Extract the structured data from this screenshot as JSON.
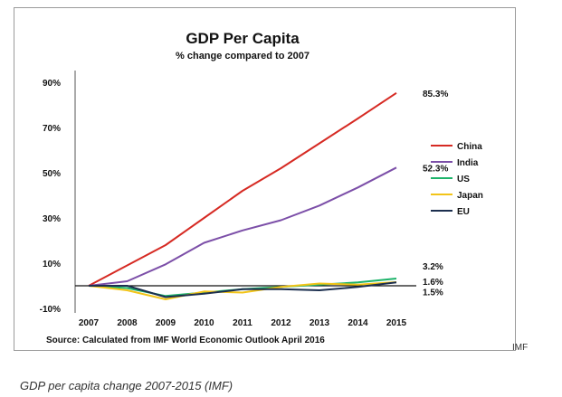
{
  "chart_data": {
    "type": "line",
    "title": "GDP Per Capita",
    "subtitle": "% change compared to 2007",
    "source": "Source: Calculated from IMF World Economic Outlook April 2016",
    "x": [
      "2007",
      "2008",
      "2009",
      "2010",
      "2011",
      "2012",
      "2013",
      "2014",
      "2015"
    ],
    "ylim": [
      -10,
      90
    ],
    "yticks": [
      -10,
      10,
      30,
      50,
      70,
      90
    ],
    "ytick_labels": [
      "-10%",
      "10%",
      "30%",
      "50%",
      "70%",
      "90%"
    ],
    "grid": false,
    "legend": "right",
    "series": [
      {
        "name": "China",
        "color": "#d62a23",
        "values": [
          0,
          9,
          18,
          30,
          42,
          52,
          63,
          74,
          85.3
        ],
        "end_label": "85.3%"
      },
      {
        "name": "India",
        "color": "#7c4fa8",
        "values": [
          0,
          2,
          9.5,
          19,
          24.5,
          29,
          35.5,
          43.5,
          52.3
        ],
        "end_label": "52.3%"
      },
      {
        "name": "US",
        "color": "#1db36a",
        "values": [
          0,
          -1,
          -4.5,
          -3,
          -1.5,
          -0.5,
          0.5,
          1.5,
          3.2
        ],
        "end_label": "3.2%"
      },
      {
        "name": "Japan",
        "color": "#f2c418",
        "values": [
          0,
          -2,
          -6,
          -2.5,
          -3,
          -0.5,
          1,
          0.5,
          1.6
        ],
        "end_label": "1.6%"
      },
      {
        "name": "EU",
        "color": "#1c2f4f",
        "values": [
          0,
          0,
          -5,
          -3.5,
          -1.5,
          -1.5,
          -2,
          -0.5,
          1.5
        ],
        "end_label": "1.5%"
      }
    ]
  },
  "caption": "GDP per capita change 2007-2015 (IMF)",
  "credit": "IMF"
}
